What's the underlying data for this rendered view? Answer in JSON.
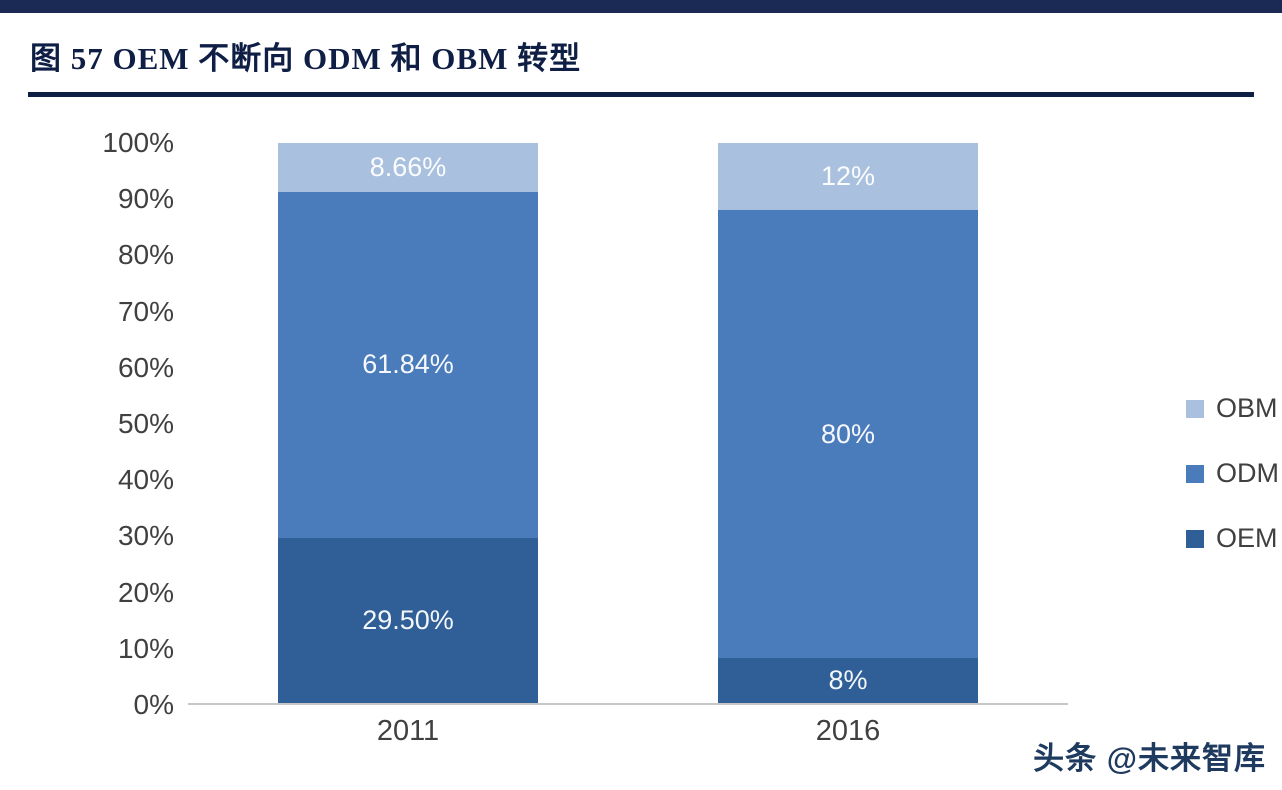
{
  "title": "图 57  OEM 不断向 ODM 和 OBM 转型",
  "watermark": "头条 @未来智库",
  "chart_data": {
    "type": "bar",
    "stacked": true,
    "title": "图 57  OEM 不断向 ODM 和 OBM 转型",
    "categories": [
      "2011",
      "2016"
    ],
    "series": [
      {
        "name": "OEM",
        "values": [
          29.5,
          8
        ],
        "labels": [
          "29.50%",
          "8%"
        ],
        "color": "#2f5f96"
      },
      {
        "name": "ODM",
        "values": [
          61.84,
          80
        ],
        "labels": [
          "61.84%",
          "80%"
        ],
        "color": "#4a7cbb"
      },
      {
        "name": "OBM",
        "values": [
          8.66,
          12
        ],
        "labels": [
          "8.66%",
          "12%"
        ],
        "color": "#a9c0de"
      }
    ],
    "legend": [
      "OBM",
      "ODM",
      "OEM"
    ],
    "legend_position": "right",
    "xlabel": "",
    "ylabel": "",
    "y_ticks": [
      "100%",
      "90%",
      "80%",
      "70%",
      "60%",
      "50%",
      "40%",
      "30%",
      "20%",
      "10%",
      "0%"
    ],
    "ylim": [
      0,
      100
    ],
    "grid": false
  }
}
